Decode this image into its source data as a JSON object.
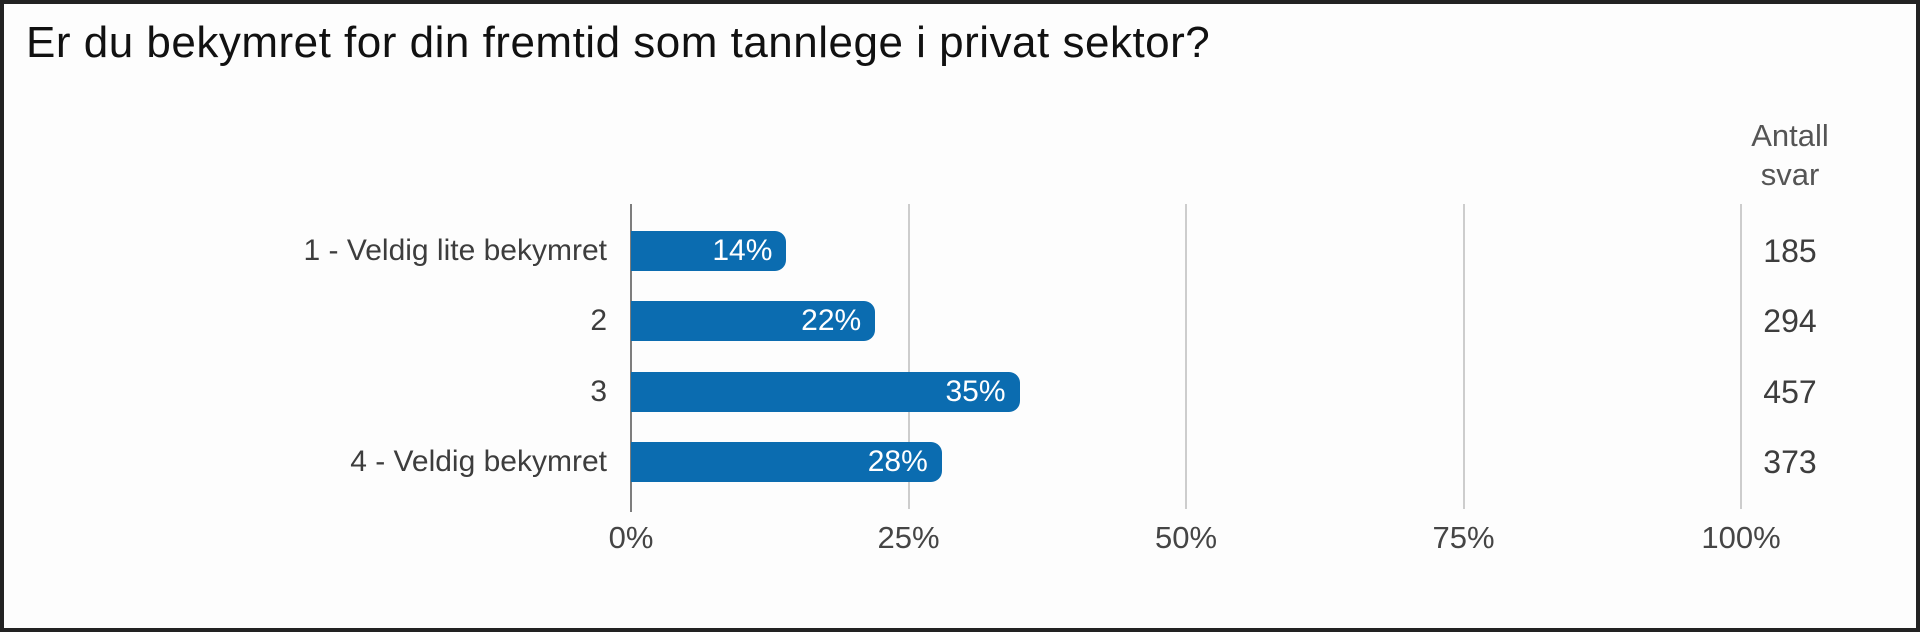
{
  "chart_data": {
    "type": "bar",
    "orientation": "horizontal",
    "title": "Er du bekymret for din fremtid som tannlege i privat sektor?",
    "categories": [
      "1 - Veldig lite bekymret",
      "2",
      "3",
      "4 - Veldig bekymret"
    ],
    "values": [
      14,
      22,
      35,
      28
    ],
    "value_labels": [
      "14%",
      "22%",
      "35%",
      "28%"
    ],
    "counts": [
      "185",
      "294",
      "457",
      "373"
    ],
    "counts_header": "Antall svar",
    "x_ticks": [
      "0%",
      "25%",
      "50%",
      "75%",
      "100%"
    ],
    "x_tick_values": [
      0,
      25,
      50,
      75,
      100
    ],
    "xlim": [
      0,
      100
    ],
    "grid": true,
    "legend": "none",
    "colors": {
      "bar": "#0b6cb0",
      "bar_value_text": "#ffffff",
      "gridline": "#cdcdcd",
      "axis_line": "#7d7d7d",
      "label_text": "#3d3d3d",
      "tick_text": "#454545",
      "header_text": "#555555",
      "title_text": "#111111",
      "frame_border": "#222222",
      "background": "#fdfdfd"
    }
  }
}
